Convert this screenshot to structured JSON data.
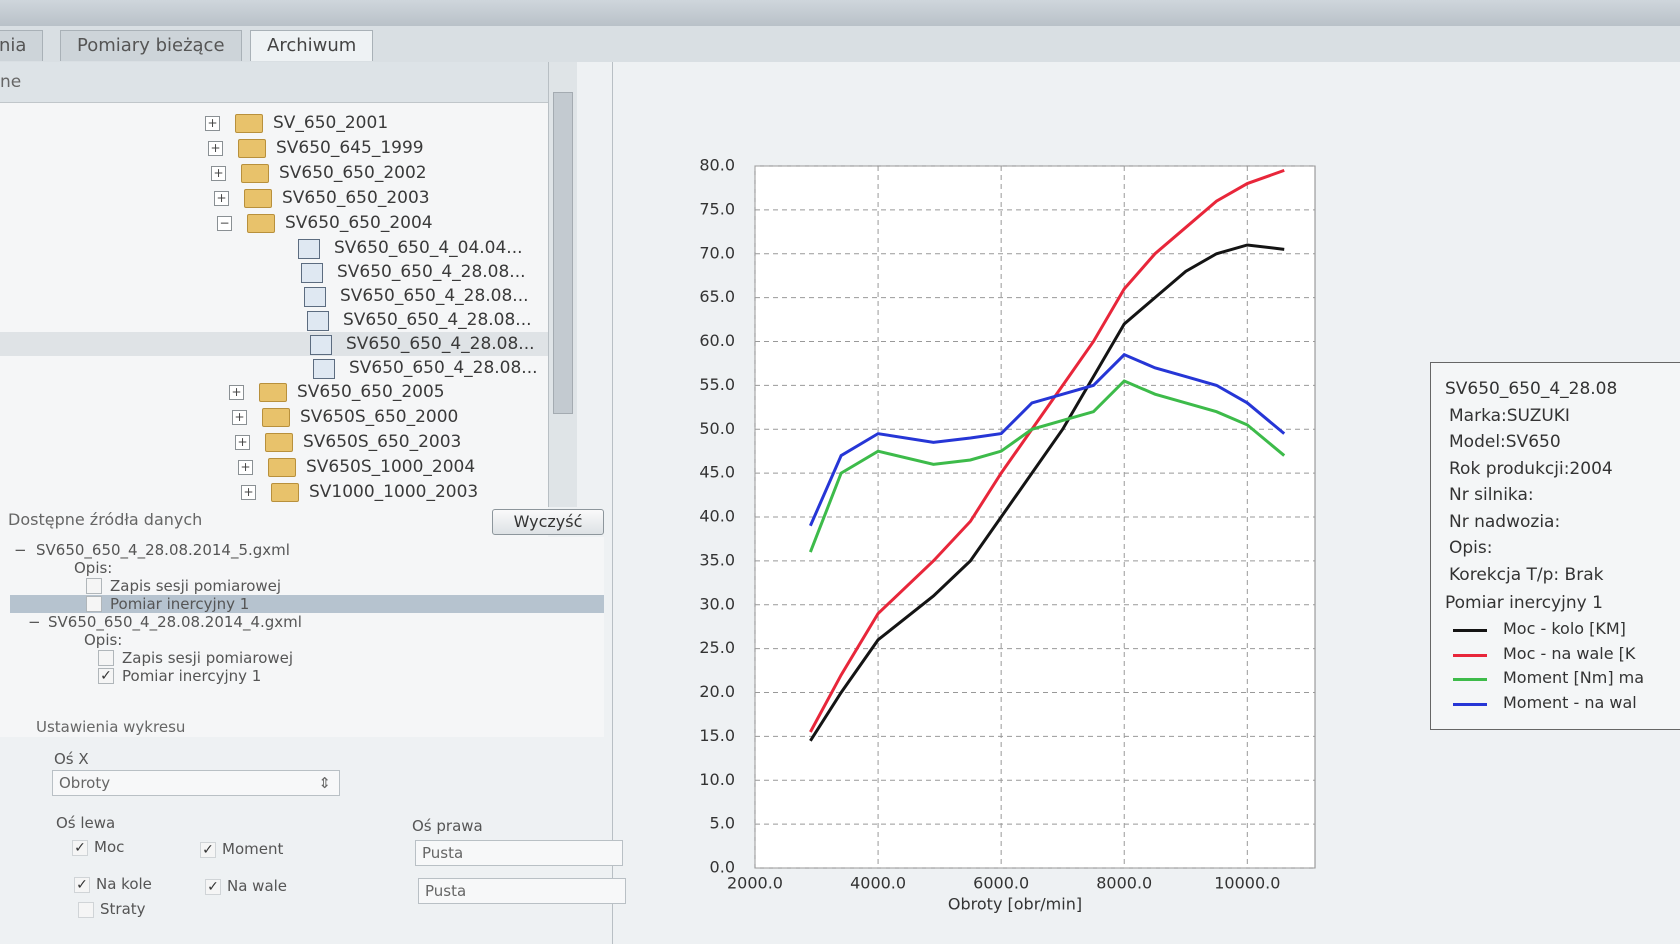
{
  "tabs": [
    "nia",
    "Pomiary bieżące",
    "Archiwum"
  ],
  "tree_header": "ne",
  "tree": {
    "folders_before": [
      "SV_650_2001",
      "SV650_645_1999",
      "SV650_650_2002",
      "SV650_650_2003"
    ],
    "open_folder": "SV650_650_2004",
    "files": [
      "SV650_650_4_04.04...",
      "SV650_650_4_28.08...",
      "SV650_650_4_28.08...",
      "SV650_650_4_28.08...",
      "SV650_650_4_28.08...",
      "SV650_650_4_28.08..."
    ],
    "folders_after": [
      "SV650_650_2005",
      "SV650S_650_2000",
      "SV650S_650_2003",
      "SV650S_1000_2004",
      "SV1000_1000_2003"
    ]
  },
  "sources": {
    "title": "Dostępne źródła danych",
    "button": "Wyczyść",
    "files": [
      {
        "name": "SV650_650_4_28.08.2014_5.gxml",
        "opis": "Opis:",
        "items": [
          {
            "label": "Zapis sesji pomiarowej",
            "checked": false
          },
          {
            "label": "Pomiar inercyjny 1",
            "checked": false
          }
        ]
      },
      {
        "name": "SV650_650_4_28.08.2014_4.gxml",
        "opis": "Opis:",
        "items": [
          {
            "label": "Zapis sesji pomiarowej",
            "checked": false
          },
          {
            "label": "Pomiar inercyjny 1",
            "checked": true
          }
        ]
      }
    ]
  },
  "settings": {
    "title": "Ustawienia wykresu",
    "x_axis": "Oś X",
    "x_axis_value": "Obroty",
    "left_axis": "Oś lewa",
    "right_axis": "Oś prawa",
    "checks": [
      {
        "label": "Moc",
        "checked": true
      },
      {
        "label": "Moment",
        "checked": true
      },
      {
        "label": "Na kole",
        "checked": true
      },
      {
        "label": "Na wale",
        "checked": true
      },
      {
        "label": "Straty",
        "checked": false
      }
    ],
    "right_values": [
      "Pusta",
      "Pusta"
    ]
  },
  "info": {
    "lines": [
      "SV650_650_4_28.08",
      "Marka:SUZUKI",
      "Model:SV650",
      "Rok produkcji:2004",
      "Nr silnika:",
      "Nr nadwozia:",
      "Opis:",
      "Korekcja T/p: Brak"
    ],
    "measurement": "Pomiar inercyjny 1"
  },
  "chart_data": {
    "type": "line",
    "x_label": "Obroty [obr/min]",
    "x": [
      2900,
      3400,
      4000,
      4900,
      5500,
      6000,
      6500,
      7000,
      7500,
      8000,
      8500,
      9000,
      9500,
      10000,
      10600
    ],
    "series": [
      {
        "name": "Moc - kolo [KM]",
        "color": "#141414",
        "values": [
          14.5,
          20,
          26,
          31,
          35,
          40,
          45,
          50,
          56,
          62,
          65,
          68,
          70,
          71,
          70.5
        ]
      },
      {
        "name": "Moc - na wale [K",
        "color": "#e8263a",
        "values": [
          15.5,
          22,
          29,
          35,
          39.5,
          45,
          50,
          55,
          60,
          66,
          70,
          73,
          76,
          78,
          79.5
        ]
      },
      {
        "name": "Moment [Nm] ma",
        "color": "#3dbb4a",
        "values": [
          36,
          45,
          47.5,
          46,
          46.5,
          47.5,
          50,
          51,
          52,
          55.5,
          54,
          53,
          52,
          50.5,
          47
        ]
      },
      {
        "name": "Moment - na wal",
        "color": "#2636d6",
        "values": [
          39,
          47,
          49.5,
          48.5,
          49,
          49.5,
          53,
          54,
          55,
          58.5,
          57,
          56,
          55,
          53,
          49.5
        ]
      }
    ],
    "xlim": [
      2000,
      11100
    ],
    "ylim": [
      0,
      80
    ],
    "xticks": [
      {
        "value": 2000,
        "label": "2000.0"
      },
      {
        "value": 4000,
        "label": "4000.0"
      },
      {
        "value": 6000,
        "label": "6000.0"
      },
      {
        "value": 8000,
        "label": "8000.0"
      },
      {
        "value": 10000,
        "label": "10000.0"
      }
    ],
    "yticks": [
      {
        "value": 0,
        "label": "0.0"
      },
      {
        "value": 5,
        "label": "5.0"
      },
      {
        "value": 10,
        "label": "10.0"
      },
      {
        "value": 15,
        "label": "15.0"
      },
      {
        "value": 20,
        "label": "20.0"
      },
      {
        "value": 25,
        "label": "25.0"
      },
      {
        "value": 30,
        "label": "30.0"
      },
      {
        "value": 35,
        "label": "35.0"
      },
      {
        "value": 40,
        "label": "40.0"
      },
      {
        "value": 45,
        "label": "45.0"
      },
      {
        "value": 50,
        "label": "50.0"
      },
      {
        "value": 55,
        "label": "55.0"
      },
      {
        "value": 60,
        "label": "60.0"
      },
      {
        "value": 65,
        "label": "65.0"
      },
      {
        "value": 70,
        "label": "70.0"
      },
      {
        "value": 75,
        "label": "75.0"
      },
      {
        "value": 80,
        "label": "80.0"
      }
    ],
    "grid": true
  }
}
